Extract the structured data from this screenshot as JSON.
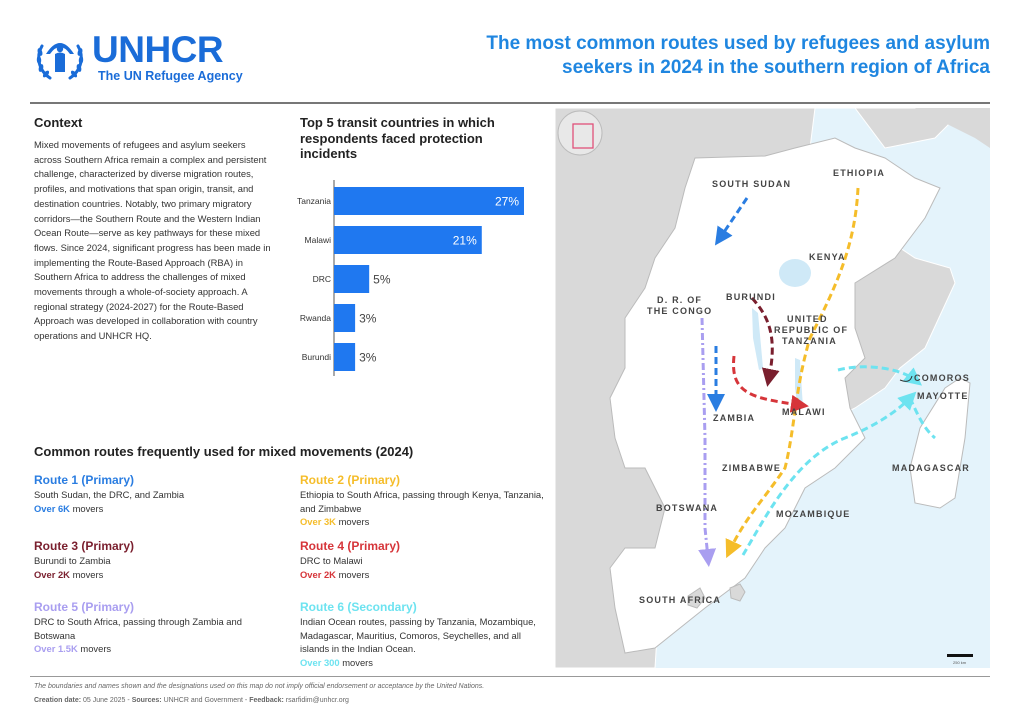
{
  "header": {
    "logo_word": "UNHCR",
    "logo_tagline": "The UN Refugee Agency",
    "title": "The most common routes used by refugees and asylum seekers in 2024 in the southern region of Africa"
  },
  "colors": {
    "brand": "#1a6cd8",
    "title": "#1f86e0",
    "bar": "#1f78f0",
    "route1": "#2a7de1",
    "route2": "#f5bd2a",
    "route3": "#7a1f2e",
    "route4": "#d6353a",
    "route5": "#a99ef0",
    "route6": "#6de3f0"
  },
  "context": {
    "heading": "Context",
    "body": "Mixed movements of refugees and asylum seekers across Southern Africa remain a complex and persistent challenge, characterized by diverse migration routes, profiles, and motivations that span origin, transit, and destination countries. Notably, two primary migratory corridors—the Southern Route and the Western Indian Ocean Route—serve as key pathways for these mixed flows. Since 2024, significant progress has been made in implementing the Route-Based Approach (RBA) in Southern Africa to address the challenges of mixed movements through a whole-of-society approach. A regional strategy (2024-2027) for the Route-Based Approach was developed in collaboration with country operations and UNHCR HQ."
  },
  "chart_data": {
    "type": "bar",
    "orientation": "horizontal",
    "title": "Top 5 transit countries in which respondents faced protection incidents",
    "categories": [
      "Tanzania",
      "Malawi",
      "DRC",
      "Rwanda",
      "Burundi"
    ],
    "values": [
      27,
      21,
      5,
      3,
      3
    ],
    "value_labels": [
      "27%",
      "21%",
      "5%",
      "3%",
      "3%"
    ],
    "unit": "%",
    "xlim": [
      0,
      27
    ],
    "xlabel": "",
    "ylabel": "",
    "grid": false
  },
  "routes": {
    "heading": "Common routes frequently used for mixed movements (2024)",
    "items": [
      {
        "title": "Route 1 (Primary)",
        "desc": "South Sudan, the DRC, and Zambia",
        "count": "Over 6K",
        "suffix": "movers"
      },
      {
        "title": "Route 2 (Primary)",
        "desc": "Ethiopia to South Africa, passing through Kenya, Tanzania, and Zimbabwe",
        "count": "Over 3K",
        "suffix": "movers"
      },
      {
        "title": "Route 3 (Primary)",
        "desc": "Burundi to Zambia",
        "count": "Over 2K",
        "suffix": "movers"
      },
      {
        "title": "Route 4 (Primary)",
        "desc": "DRC to Malawi",
        "count": "Over 2K",
        "suffix": "movers"
      },
      {
        "title": "Route 5 (Primary)",
        "desc": "DRC to South Africa, passing through Zambia and Botswana",
        "count": "Over 1.5K",
        "suffix": "movers"
      },
      {
        "title": "Route 6 (Secondary)",
        "desc": "Indian Ocean routes, passing by Tanzania, Mozambique, Madagascar, Mauritius, Comoros, Seychelles, and all islands in the Indian Ocean.",
        "count": "Over 300",
        "suffix": "movers"
      }
    ]
  },
  "map": {
    "labels": {
      "ethiopia": "ETHIOPIA",
      "south_sudan": "SOUTH SUDAN",
      "kenya": "KENYA",
      "burundi": "BURUNDI",
      "drc_1": "D. R. OF",
      "drc_2": "THE CONGO",
      "tanzania_1": "UNITED",
      "tanzania_2": "REPUBLIC OF",
      "tanzania_3": "TANZANIA",
      "comoros": "COMOROS",
      "mayotte": "MAYOTTE",
      "zambia": "ZAMBIA",
      "malawi": "MALAWI",
      "madagascar": "MADAGASCAR",
      "zimbabwe": "ZIMBABWE",
      "botswana": "BOTSWANA",
      "mozambique": "MOZAMBIQUE",
      "south_africa": "SOUTH AFRICA"
    },
    "scale_label": "250 km"
  },
  "footer": {
    "disclaimer": "The boundaries and names shown and the designations used on this map do not imply official endorsement or acceptance by the United Nations.",
    "creation_label": "Creation date:",
    "creation_value": "05 June 2025",
    "sources_label": "Sources:",
    "sources_value": "UNHCR and Government",
    "feedback_label": "Feedback:",
    "feedback_value": "rsarfidim@unhcr.org",
    "separator": " - "
  }
}
